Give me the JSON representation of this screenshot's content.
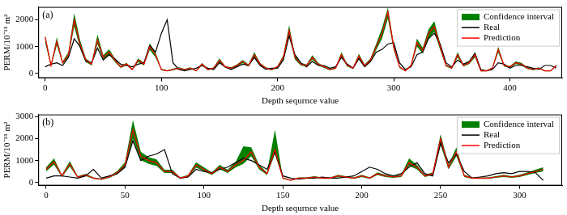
{
  "chart_data": [
    {
      "type": "line",
      "title": "(a)",
      "x_label": "Depth sequrnce value",
      "y_label": "PERM/10⁻¹⁵ m²",
      "legend": "upper right",
      "grid": false,
      "xlim": [
        -6,
        445
      ],
      "xticks": [
        0,
        100,
        200,
        300,
        400
      ],
      "ylim": [
        -170,
        2480
      ],
      "yticks": [
        0,
        1000,
        2000
      ],
      "x": [
        0,
        5,
        10,
        15,
        20,
        25,
        30,
        35,
        40,
        45,
        50,
        55,
        60,
        65,
        70,
        75,
        80,
        85,
        90,
        95,
        100,
        105,
        110,
        115,
        120,
        125,
        130,
        135,
        140,
        145,
        150,
        155,
        160,
        165,
        170,
        175,
        180,
        185,
        190,
        195,
        200,
        205,
        210,
        215,
        220,
        225,
        230,
        235,
        240,
        245,
        250,
        255,
        260,
        265,
        270,
        275,
        280,
        285,
        290,
        295,
        300,
        305,
        310,
        315,
        320,
        325,
        330,
        335,
        340,
        345,
        350,
        355,
        360,
        365,
        370,
        375,
        380,
        385,
        390,
        395,
        400,
        405,
        410,
        415,
        420,
        425,
        430,
        435,
        440
      ],
      "series": [
        {
          "name": "Confidence interval",
          "type": "area",
          "color": "#008000",
          "lower": [
            1150,
            250,
            1050,
            350,
            600,
            1750,
            950,
            430,
            300,
            1100,
            520,
            700,
            430,
            210,
            300,
            120,
            430,
            300,
            880,
            600,
            120,
            80,
            120,
            170,
            120,
            170,
            80,
            300,
            120,
            170,
            430,
            210,
            170,
            260,
            390,
            260,
            600,
            300,
            170,
            120,
            210,
            520,
            1400,
            520,
            300,
            260,
            520,
            300,
            210,
            120,
            170,
            600,
            260,
            170,
            560,
            260,
            430,
            880,
            1300,
            2050,
            880,
            210,
            80,
            260,
            1000,
            740,
            1300,
            1550,
            880,
            260,
            170,
            600,
            260,
            350,
            600,
            80,
            80,
            170,
            780,
            260,
            210,
            350,
            300,
            170,
            120,
            170,
            80,
            80,
            260
          ],
          "upper": [
            1450,
            350,
            1350,
            450,
            800,
            2250,
            1250,
            560,
            400,
            1450,
            680,
            900,
            560,
            280,
            400,
            180,
            560,
            400,
            1120,
            780,
            180,
            120,
            180,
            230,
            170,
            230,
            120,
            400,
            170,
            230,
            560,
            280,
            230,
            340,
            500,
            340,
            800,
            400,
            230,
            170,
            280,
            680,
            1800,
            680,
            400,
            340,
            680,
            400,
            280,
            170,
            230,
            800,
            340,
            230,
            740,
            340,
            560,
            1120,
            1700,
            2450,
            1120,
            280,
            120,
            340,
            1300,
            960,
            1650,
            1950,
            1120,
            340,
            230,
            800,
            340,
            450,
            800,
            120,
            120,
            230,
            1000,
            340,
            280,
            450,
            400,
            230,
            170,
            230,
            120,
            120,
            340
          ]
        },
        {
          "name": "Real",
          "color": "#000000",
          "line_style": "solid",
          "values": [
            250,
            350,
            400,
            300,
            600,
            1300,
            1000,
            450,
            400,
            950,
            500,
            700,
            550,
            350,
            300,
            250,
            350,
            400,
            1050,
            800,
            1500,
            2000,
            400,
            150,
            100,
            150,
            200,
            300,
            200,
            150,
            400,
            250,
            150,
            250,
            350,
            300,
            600,
            300,
            150,
            200,
            200,
            500,
            1400,
            700,
            400,
            250,
            450,
            300,
            300,
            200,
            250,
            600,
            350,
            200,
            550,
            250,
            450,
            800,
            900,
            1100,
            1150,
            400,
            150,
            250,
            700,
            800,
            1300,
            1500,
            1100,
            400,
            250,
            500,
            350,
            450,
            750,
            150,
            100,
            150,
            400,
            350,
            200,
            300,
            300,
            250,
            200,
            150,
            300,
            300,
            200
          ]
        },
        {
          "name": "Prediction",
          "color": "#ff0000",
          "line_style": "solid",
          "values": [
            1350,
            300,
            1200,
            400,
            700,
            2000,
            1100,
            500,
            350,
            1250,
            600,
            800,
            500,
            250,
            350,
            150,
            500,
            350,
            1000,
            700,
            150,
            100,
            150,
            200,
            150,
            200,
            100,
            350,
            150,
            200,
            500,
            250,
            200,
            300,
            450,
            300,
            700,
            350,
            200,
            150,
            250,
            600,
            1600,
            600,
            350,
            300,
            600,
            350,
            250,
            150,
            200,
            700,
            300,
            200,
            650,
            300,
            500,
            1000,
            1500,
            2300,
            1000,
            250,
            100,
            300,
            1150,
            850,
            1500,
            1750,
            1000,
            300,
            200,
            700,
            300,
            400,
            700,
            100,
            100,
            200,
            900,
            300,
            250,
            400,
            350,
            200,
            150,
            200,
            100,
            100,
            300
          ]
        }
      ]
    },
    {
      "type": "line",
      "title": "(b)",
      "x_label": "Depth sequrnce value",
      "y_label": "PERM/10⁻¹⁵ m²",
      "legend": "upper right",
      "grid": false,
      "xlim": [
        -5,
        327
      ],
      "xticks": [
        0,
        50,
        100,
        150,
        200,
        250,
        300
      ],
      "ylim": [
        -140,
        3100
      ],
      "yticks": [
        0,
        1000,
        2000,
        3000
      ],
      "x": [
        0,
        5,
        10,
        15,
        20,
        25,
        30,
        35,
        40,
        45,
        50,
        55,
        60,
        65,
        70,
        75,
        80,
        85,
        90,
        95,
        100,
        105,
        110,
        115,
        120,
        125,
        130,
        135,
        140,
        145,
        150,
        155,
        160,
        165,
        170,
        175,
        180,
        185,
        190,
        195,
        200,
        205,
        210,
        215,
        220,
        225,
        230,
        235,
        240,
        245,
        250,
        255,
        260,
        265,
        270,
        275,
        280,
        285,
        290,
        295,
        300,
        305,
        310,
        315
      ],
      "series": [
        {
          "name": "Confidence interval",
          "type": "area",
          "color": "#008000",
          "lower": [
            510,
            820,
            250,
            730,
            210,
            300,
            170,
            120,
            210,
            380,
            680,
            2000,
            1020,
            850,
            760,
            430,
            430,
            170,
            250,
            680,
            510,
            340,
            600,
            430,
            680,
            850,
            1200,
            600,
            340,
            1300,
            170,
            80,
            170,
            170,
            210,
            170,
            170,
            250,
            210,
            170,
            250,
            170,
            340,
            250,
            210,
            250,
            760,
            600,
            250,
            340,
            1700,
            600,
            1200,
            250,
            170,
            170,
            170,
            210,
            250,
            210,
            250,
            340,
            430,
            510
          ],
          "upper": [
            690,
            1100,
            350,
            980,
            290,
            400,
            230,
            180,
            290,
            520,
            920,
            2850,
            1400,
            1150,
            1050,
            580,
            580,
            230,
            350,
            920,
            690,
            460,
            800,
            580,
            920,
            1650,
            1600,
            800,
            460,
            2400,
            230,
            120,
            230,
            230,
            290,
            230,
            230,
            350,
            290,
            230,
            350,
            230,
            460,
            350,
            290,
            350,
            1100,
            800,
            350,
            460,
            2200,
            800,
            1600,
            350,
            230,
            230,
            230,
            290,
            350,
            290,
            350,
            460,
            580,
            690
          ]
        },
        {
          "name": "Real",
          "color": "#000000",
          "line_style": "solid",
          "values": [
            200,
            300,
            300,
            250,
            200,
            300,
            600,
            200,
            300,
            400,
            700,
            1900,
            1000,
            1200,
            1300,
            1500,
            400,
            200,
            250,
            600,
            500,
            450,
            600,
            700,
            900,
            1100,
            1000,
            800,
            600,
            1400,
            300,
            200,
            150,
            200,
            200,
            250,
            200,
            200,
            250,
            300,
            500,
            700,
            600,
            400,
            300,
            400,
            700,
            900,
            400,
            300,
            1800,
            900,
            1300,
            500,
            200,
            250,
            300,
            400,
            450,
            400,
            500,
            500,
            450,
            100
          ]
        },
        {
          "name": "Prediction",
          "color": "#ff0000",
          "line_style": "solid",
          "values": [
            600,
            950,
            300,
            850,
            250,
            350,
            200,
            150,
            250,
            450,
            800,
            2400,
            1200,
            1000,
            900,
            500,
            500,
            200,
            300,
            800,
            600,
            400,
            700,
            500,
            800,
            1000,
            1400,
            700,
            400,
            1500,
            200,
            100,
            200,
            200,
            250,
            200,
            200,
            300,
            250,
            200,
            300,
            200,
            400,
            300,
            250,
            300,
            900,
            700,
            300,
            400,
            2000,
            700,
            1400,
            300,
            200,
            200,
            200,
            250,
            300,
            250,
            300,
            400,
            500,
            600
          ]
        }
      ]
    }
  ]
}
